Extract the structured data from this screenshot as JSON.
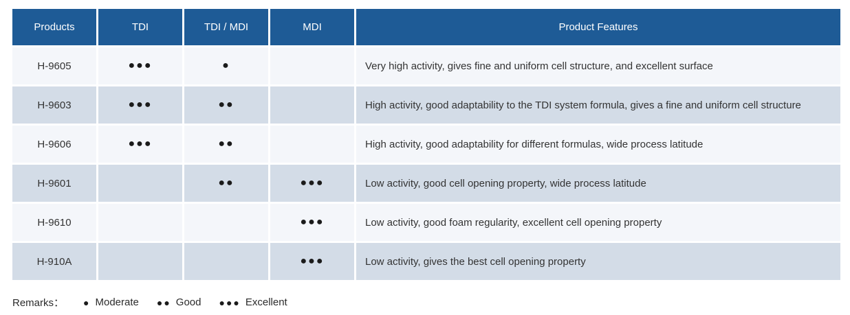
{
  "colors": {
    "header_bg": "#1e5b96",
    "header_text": "#ffffff",
    "row_light": "#f4f6fa",
    "row_shaded": "#d3dce7",
    "body_text": "#333333",
    "dot": "#1b1b1b",
    "separator": "#ffffff"
  },
  "table": {
    "columns": [
      "Products",
      "TDI",
      "TDI / MDI",
      "MDI",
      "Product Features"
    ],
    "rows": [
      {
        "product": "H-9605",
        "tdi": "●●●",
        "tdi_mdi": "●",
        "mdi": "",
        "features": "Very high activity, gives fine and uniform cell structure, and excellent surface"
      },
      {
        "product": "H-9603",
        "tdi": "●●●",
        "tdi_mdi": "●●",
        "mdi": "",
        "features": "High activity, good adaptability to the TDI system formula, gives a fine and uniform cell structure"
      },
      {
        "product": "H-9606",
        "tdi": "●●●",
        "tdi_mdi": "●●",
        "mdi": "",
        "features": "High activity, good adaptability for different formulas, wide process latitude"
      },
      {
        "product": "H-9601",
        "tdi": "",
        "tdi_mdi": "●●",
        "mdi": "●●●",
        "features": "Low activity, good cell opening property, wide process latitude"
      },
      {
        "product": "H-9610",
        "tdi": "",
        "tdi_mdi": "",
        "mdi": "●●●",
        "features": "Low activity, good foam regularity, excellent cell opening property"
      },
      {
        "product": "H-910A",
        "tdi": "",
        "tdi_mdi": "",
        "mdi": "●●●",
        "features": "Low activity, gives the best cell opening property"
      }
    ]
  },
  "remarks": {
    "label": "Remarks：",
    "items": [
      {
        "dots": "●",
        "label": "Moderate"
      },
      {
        "dots": "●●",
        "label": "Good"
      },
      {
        "dots": "●●●",
        "label": "Excellent"
      }
    ]
  }
}
